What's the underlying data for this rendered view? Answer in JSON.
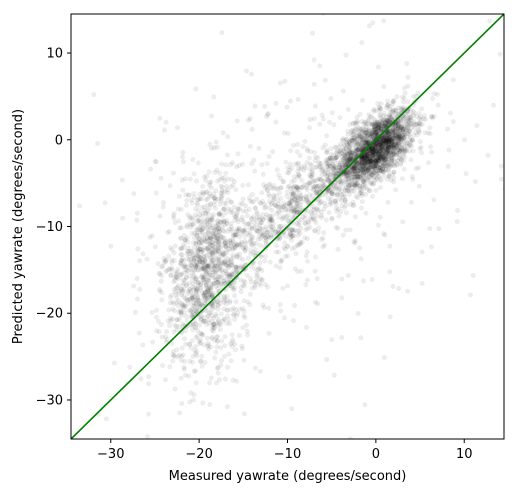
{
  "chart_data": {
    "type": "scatter",
    "title": "",
    "xlabel": "Measured yawrate (degrees/second)",
    "ylabel": "Predicted yawrate (degrees/second)",
    "xlim": [
      -34.5,
      14.5
    ],
    "ylim": [
      -34.5,
      14.5
    ],
    "xticks": [
      -30,
      -20,
      -10,
      0,
      10
    ],
    "yticks": [
      -30,
      -20,
      -10,
      0,
      10
    ],
    "xtick_labels": [
      "−30",
      "−20",
      "−10",
      "0",
      "10"
    ],
    "ytick_labels": [
      "−30",
      "−20",
      "−10",
      "0",
      "10"
    ],
    "grid": false,
    "legend": false,
    "point_color": "#000000",
    "point_alpha": 0.07,
    "reference_line": {
      "description": "identity line y = x",
      "color": "#008000",
      "points": [
        [
          -34.5,
          -34.5
        ],
        [
          14.5,
          14.5
        ]
      ]
    },
    "clusters": [
      {
        "name": "near-zero yawrate",
        "center": [
          0,
          -1
        ],
        "spread": [
          2.2,
          2.2
        ],
        "count": 1800,
        "correlation": 0.6
      },
      {
        "name": "strong negative yawrate",
        "center": [
          -19,
          -15
        ],
        "spread": [
          2.5,
          5.5
        ],
        "count": 1100,
        "correlation": 0.2
      },
      {
        "name": "diagonal band",
        "center": [
          -8,
          -7
        ],
        "spread": [
          5.5,
          5.0
        ],
        "count": 900,
        "correlation": 0.85
      },
      {
        "name": "scattered outliers",
        "center": [
          -10,
          -9
        ],
        "spread": [
          12,
          10
        ],
        "count": 350,
        "correlation": 0.3
      }
    ]
  }
}
